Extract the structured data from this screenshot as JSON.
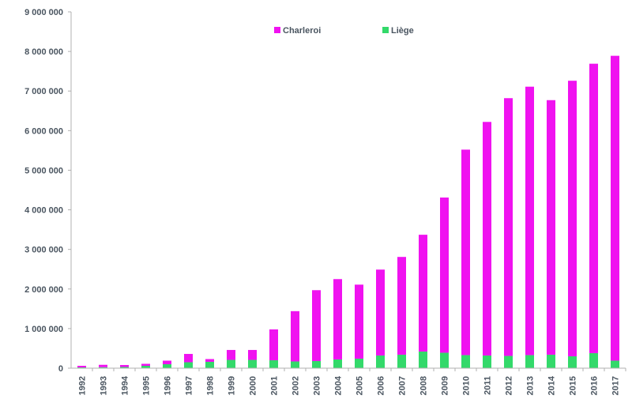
{
  "chart_data": {
    "type": "bar",
    "stacked": true,
    "title": "",
    "xlabel": "",
    "ylabel": "",
    "ylim": [
      0,
      9000000
    ],
    "yticks": [
      0,
      1000000,
      2000000,
      3000000,
      4000000,
      5000000,
      6000000,
      7000000,
      8000000,
      9000000
    ],
    "ytick_labels": [
      "0",
      "1 000 000",
      "2 000 000",
      "3 000 000",
      "4 000 000",
      "5 000 000",
      "6 000 000",
      "7 000 000",
      "8 000 000",
      "9 000 000"
    ],
    "grid": false,
    "legend_position": "top",
    "categories": [
      "1992",
      "1993",
      "1994",
      "1995",
      "1996",
      "1997",
      "1998",
      "1999",
      "2000",
      "2001",
      "2002",
      "2003",
      "2004",
      "2005",
      "2006",
      "2007",
      "2008",
      "2009",
      "2010",
      "2011",
      "2012",
      "2013",
      "2014",
      "2015",
      "2016",
      "2017"
    ],
    "series": [
      {
        "name": "Liège",
        "color": "#33d96a",
        "values": [
          20000,
          25000,
          30000,
          60000,
          100000,
          150000,
          160000,
          210000,
          210000,
          200000,
          170000,
          180000,
          220000,
          240000,
          320000,
          340000,
          420000,
          390000,
          330000,
          320000,
          310000,
          330000,
          340000,
          300000,
          380000,
          190000
        ]
      },
      {
        "name": "Charleroi",
        "color": "#f012f0",
        "values": [
          40000,
          60000,
          50000,
          50000,
          90000,
          210000,
          70000,
          250000,
          250000,
          780000,
          1270000,
          1790000,
          2030000,
          1870000,
          2170000,
          2470000,
          2950000,
          3920000,
          5190000,
          5900000,
          6510000,
          6780000,
          6430000,
          6960000,
          7310000,
          7700000
        ]
      }
    ]
  }
}
